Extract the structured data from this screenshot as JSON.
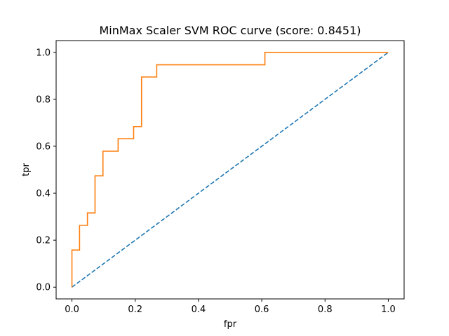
{
  "chart_data": {
    "type": "line",
    "title": "MinMax Scaler SVM ROC curve (score: 0.8451)",
    "xlabel": "fpr",
    "ylabel": "tpr",
    "xlim": [
      -0.05,
      1.05
    ],
    "ylim": [
      -0.05,
      1.05
    ],
    "xticks": [
      0.0,
      0.2,
      0.4,
      0.6,
      0.8,
      1.0
    ],
    "yticks": [
      0.0,
      0.2,
      0.4,
      0.6,
      0.8,
      1.0
    ],
    "xtick_labels": [
      "0.0",
      "0.2",
      "0.4",
      "0.6",
      "0.8",
      "1.0"
    ],
    "ytick_labels": [
      "0.0",
      "0.2",
      "0.4",
      "0.6",
      "0.8",
      "1.0"
    ],
    "grid": false,
    "series": [
      {
        "style": "dashed",
        "color": "#1f77b4",
        "x": [
          0.0,
          1.0
        ],
        "y": [
          0.0,
          1.0
        ]
      },
      {
        "style": "solid-step",
        "color": "#ff7f0e",
        "x": [
          0.0,
          0.0,
          0.024,
          0.024,
          0.049,
          0.049,
          0.073,
          0.073,
          0.098,
          0.098,
          0.146,
          0.146,
          0.195,
          0.195,
          0.22,
          0.22,
          0.268,
          0.268,
          0.61,
          0.61,
          1.0
        ],
        "y": [
          0.0,
          0.158,
          0.158,
          0.263,
          0.263,
          0.316,
          0.316,
          0.474,
          0.474,
          0.579,
          0.579,
          0.632,
          0.632,
          0.684,
          0.684,
          0.895,
          0.895,
          0.947,
          0.947,
          1.0,
          1.0
        ]
      }
    ]
  }
}
